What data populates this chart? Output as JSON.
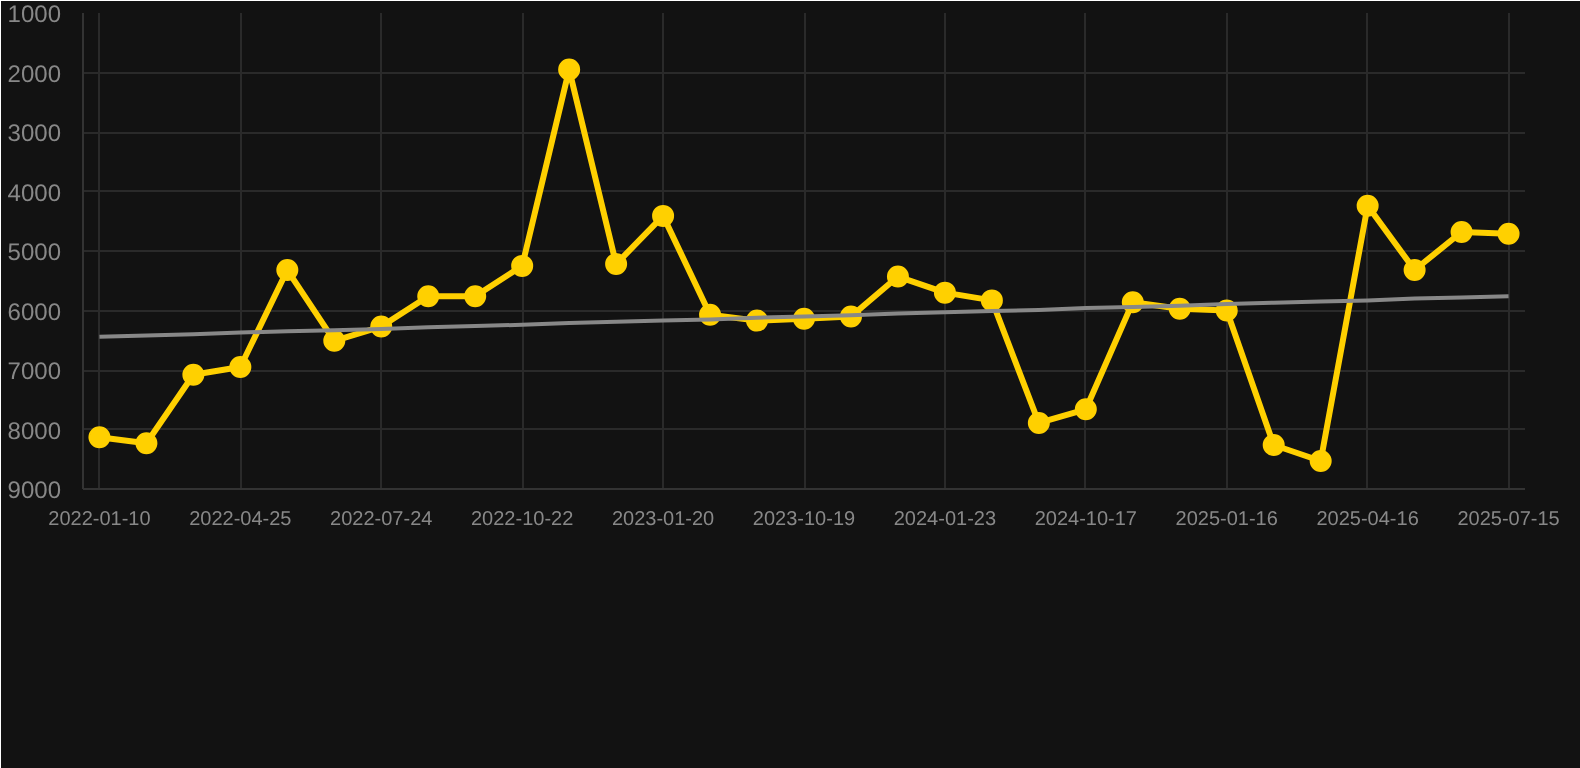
{
  "chart_data": {
    "type": "line",
    "categories": [
      "2022-01-10",
      null,
      null,
      "2022-04-25",
      null,
      null,
      "2022-07-24",
      null,
      null,
      "2022-10-22",
      null,
      null,
      "2023-01-20",
      null,
      null,
      "2023-10-19",
      null,
      null,
      "2024-01-23",
      null,
      null,
      "2024-10-17",
      null,
      null,
      "2025-01-16",
      null,
      null,
      "2025-04-16",
      null,
      null,
      "2025-07-15"
    ],
    "series": [
      {
        "color": "#ffd000",
        "marker": "circle",
        "values": [
          8130,
          8230,
          7080,
          6950,
          5320,
          6510,
          6270,
          5760,
          5760,
          5250,
          1950,
          5220,
          4410,
          6070,
          6170,
          6140,
          6100,
          5430,
          5700,
          5830,
          7890,
          7660,
          5860,
          5970,
          6000,
          8260,
          8530,
          4240,
          5320,
          4680,
          4710
        ]
      },
      {
        "type": "line",
        "color": "#888888",
        "marker": "none",
        "values": [
          6440,
          6420,
          6400,
          6370,
          6350,
          6330,
          6310,
          6280,
          6260,
          6240,
          6210,
          6190,
          6170,
          6150,
          6120,
          6100,
          6080,
          6050,
          6030,
          6010,
          5990,
          5960,
          5940,
          5920,
          5890,
          5870,
          5850,
          5830,
          5800,
          5780,
          5760
        ]
      }
    ],
    "ylim": [
      9000,
      1000
    ],
    "yticks": [
      1000,
      2000,
      3000,
      4000,
      5000,
      6000,
      7000,
      8000,
      9000
    ],
    "grid": true
  }
}
